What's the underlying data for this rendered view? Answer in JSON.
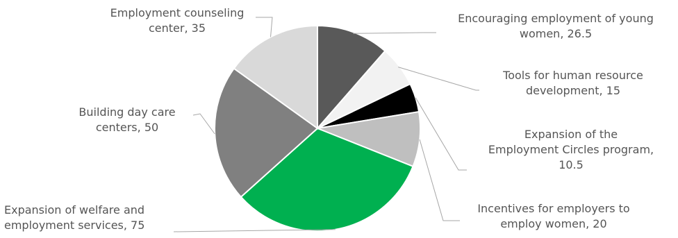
{
  "chart_data": {
    "type": "pie",
    "title": "",
    "series": [
      {
        "values": [
          26.5,
          15,
          10.5,
          20,
          75,
          50,
          35
        ]
      }
    ],
    "slices": [
      {
        "label": "Encouraging employment of young women",
        "value": 26.5,
        "display": "Encouraging employment of young women, 26.5",
        "color": "#595959"
      },
      {
        "label": "Tools for human resource development",
        "value": 15,
        "display": "Tools for human resource development, 15",
        "color": "#f2f2f2"
      },
      {
        "label": "Expansion of the Employment Circles program",
        "value": 10.5,
        "display": "Expansion of the Employment Circles program, 10.5",
        "color": "#000000"
      },
      {
        "label": "Incentives for employers to employ women",
        "value": 20,
        "display": "Incentives for employers to employ women, 20",
        "color": "#bfbfbf"
      },
      {
        "label": "Expansion of welfare and employment services",
        "value": 75,
        "display": "Expansion of welfare and employment services, 75",
        "color": "#00b050"
      },
      {
        "label": "Building day care centers",
        "value": 50,
        "display": "Building day care centers, 50",
        "color": "#808080"
      },
      {
        "label": "Employment counseling center",
        "value": 35,
        "display": "Employment counseling center, 35",
        "color": "#d9d9d9"
      }
    ],
    "start_angle": "12 o'clock",
    "direction": "clockwise",
    "legend": "none",
    "data_labels": "outside with leader lines"
  },
  "labels": {
    "encouraging": [
      "Encouraging employment of young",
      "women, 26.5"
    ],
    "tools": [
      "Tools for human resource",
      "development, 15"
    ],
    "circles": [
      "Expansion of the",
      "Employment Circles program,",
      "10.5"
    ],
    "incentives": [
      "Incentives for employers to",
      "employ women, 20"
    ],
    "welfare": [
      "Expansion of welfare and",
      "employment services, 75"
    ],
    "daycare": [
      "Building day care",
      "centers, 50"
    ],
    "counseling": [
      "Employment counseling",
      "center, 35"
    ]
  }
}
